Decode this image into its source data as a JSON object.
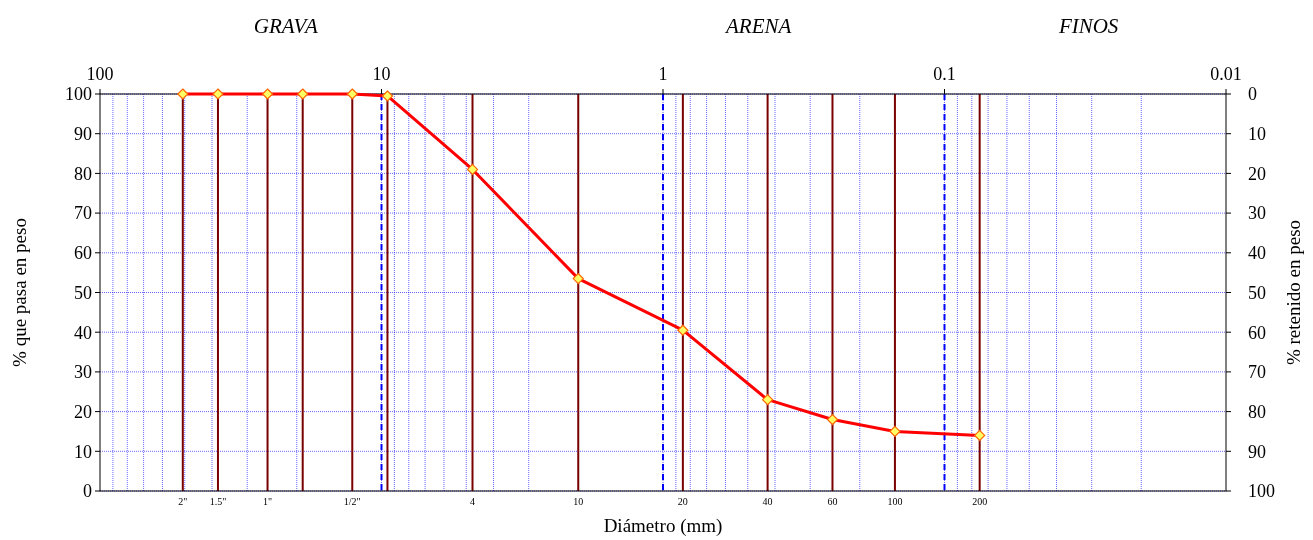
{
  "chart_data": {
    "type": "line",
    "xlabel": "Diámetro (mm)",
    "ylabel": "% que pasa en peso",
    "y2label": "% retenido en peso",
    "log": "x",
    "xlim": [
      100,
      0.01
    ],
    "xticks": [
      100,
      10,
      1,
      0.1,
      0.01
    ],
    "ylim": [
      0,
      100
    ],
    "yticks": [
      0,
      10,
      20,
      30,
      40,
      50,
      60,
      70,
      80,
      90,
      100
    ],
    "y2lim": [
      100,
      0
    ],
    "y2ticks": [
      0,
      10,
      20,
      30,
      40,
      50,
      60,
      70,
      80,
      90,
      100
    ],
    "grid": true,
    "marker": "diamond",
    "line_style": "solid",
    "annotations": [
      "GRAVA",
      "ARENA",
      "FINOS",
      {
        "text": "2\"",
        "x": 50.8,
        "y": 0
      },
      {
        "text": "1.5\"",
        "x": 38.1,
        "y": 0
      },
      {
        "text": "1\"",
        "x": 25.4,
        "y": 0
      },
      {
        "text": "1/2\"",
        "x": 12.7,
        "y": 0
      },
      {
        "text": "4",
        "x": 4.75,
        "y": 0
      },
      {
        "text": "10",
        "x": 2,
        "y": 0
      },
      {
        "text": "20",
        "x": 0.85,
        "y": 0
      },
      {
        "text": "40",
        "x": 0.425,
        "y": 0
      },
      {
        "text": "60",
        "x": 0.25,
        "y": 0
      },
      {
        "text": "100",
        "x": 0.15,
        "y": 0
      },
      {
        "text": "200",
        "x": 0.075,
        "y": 0
      }
    ],
    "ref_lines": [
      {
        "axis": "x",
        "value": 10,
        "color": "#0000ff",
        "line_style": "dashed"
      },
      {
        "axis": "x",
        "value": 1,
        "color": "#0000ff",
        "line_style": "dashed"
      },
      {
        "axis": "x",
        "value": 0.1,
        "color": "#0000ff",
        "line_style": "dashed"
      },
      {
        "axis": "x",
        "value": 50.8,
        "color": "#7a0000",
        "line_style": "solid"
      },
      {
        "axis": "x",
        "value": 38.1,
        "color": "#7a0000",
        "line_style": "solid"
      },
      {
        "axis": "x",
        "value": 25.4,
        "color": "#7a0000",
        "line_style": "solid"
      },
      {
        "axis": "x",
        "value": 19.05,
        "color": "#7a0000",
        "line_style": "solid"
      },
      {
        "axis": "x",
        "value": 12.7,
        "color": "#7a0000",
        "line_style": "solid"
      },
      {
        "axis": "x",
        "value": 9.525,
        "color": "#7a0000",
        "line_style": "solid"
      },
      {
        "axis": "x",
        "value": 4.75,
        "color": "#7a0000",
        "line_style": "solid"
      },
      {
        "axis": "x",
        "value": 2,
        "color": "#7a0000",
        "line_style": "solid"
      },
      {
        "axis": "x",
        "value": 0.85,
        "color": "#7a0000",
        "line_style": "solid"
      },
      {
        "axis": "x",
        "value": 0.425,
        "color": "#7a0000",
        "line_style": "solid"
      },
      {
        "axis": "x",
        "value": 0.25,
        "color": "#7a0000",
        "line_style": "solid"
      },
      {
        "axis": "x",
        "value": 0.15,
        "color": "#7a0000",
        "line_style": "solid"
      },
      {
        "axis": "x",
        "value": 0.075,
        "color": "#7a0000",
        "line_style": "solid"
      }
    ],
    "series": [
      {
        "color": "#ff0000",
        "x": [
          50.8,
          38.1,
          25.4,
          19.05,
          12.7,
          9.525,
          4.75,
          2,
          0.85,
          0.425,
          0.25,
          0.15,
          0.075
        ],
        "values": [
          100,
          100,
          100,
          100,
          100,
          99.5,
          81,
          53.5,
          40.5,
          23,
          18,
          15,
          14
        ]
      }
    ]
  }
}
